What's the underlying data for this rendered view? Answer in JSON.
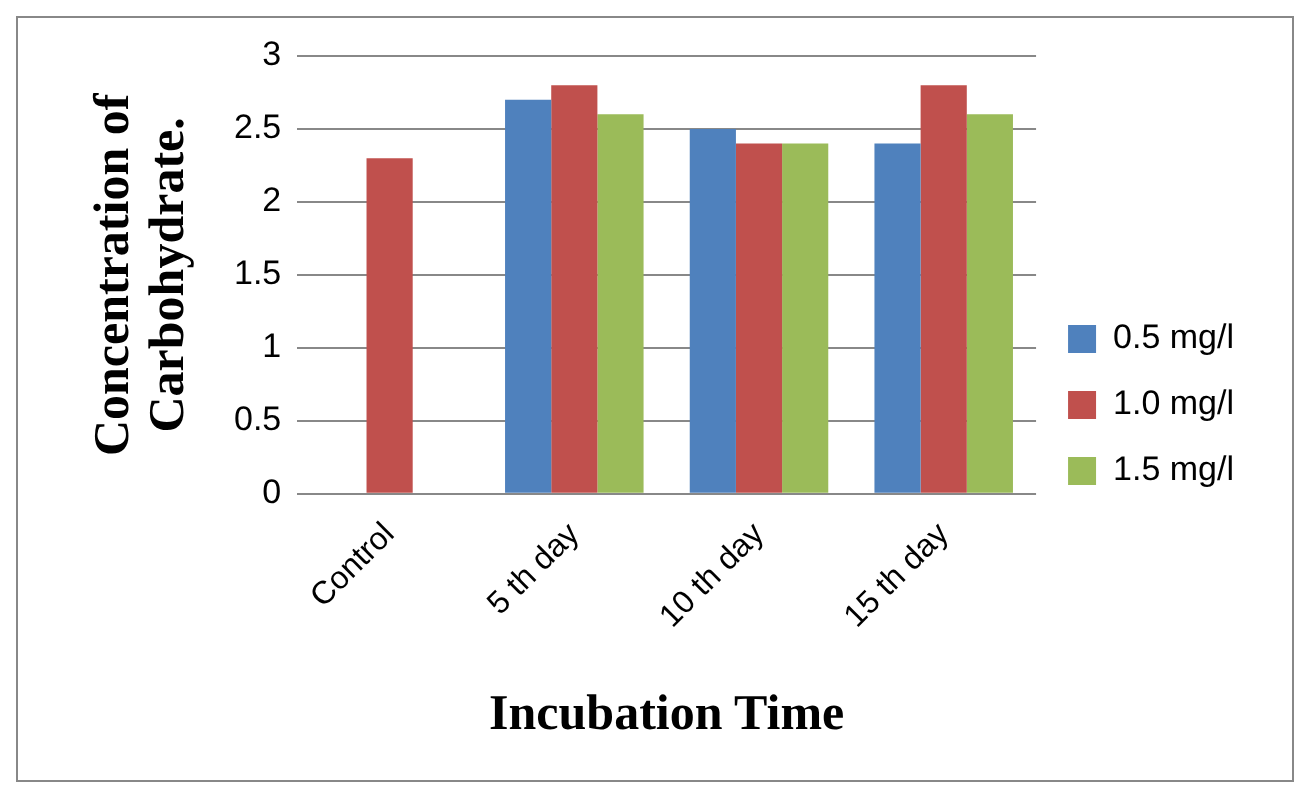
{
  "chart_data": {
    "type": "bar",
    "xlabel": "Incubation Time",
    "ylabel": "Concentration of Carbohydrate.",
    "categories": [
      "Control",
      "5 th day",
      "10 th day",
      "15 th day"
    ],
    "series": [
      {
        "name": "0.5 mg/l",
        "color": "#4f81bd",
        "values": [
          null,
          2.7,
          2.5,
          2.4
        ]
      },
      {
        "name": "1.0 mg/l",
        "color": "#c0504d",
        "values": [
          2.3,
          2.8,
          2.4,
          2.8
        ]
      },
      {
        "name": "1.5 mg/l",
        "color": "#9bbb59",
        "values": [
          null,
          2.6,
          2.4,
          2.6
        ]
      }
    ],
    "ylim": [
      0,
      3
    ],
    "yticks": [
      0,
      0.5,
      1,
      1.5,
      2,
      2.5,
      3
    ],
    "grid": "y",
    "legend": "right"
  }
}
